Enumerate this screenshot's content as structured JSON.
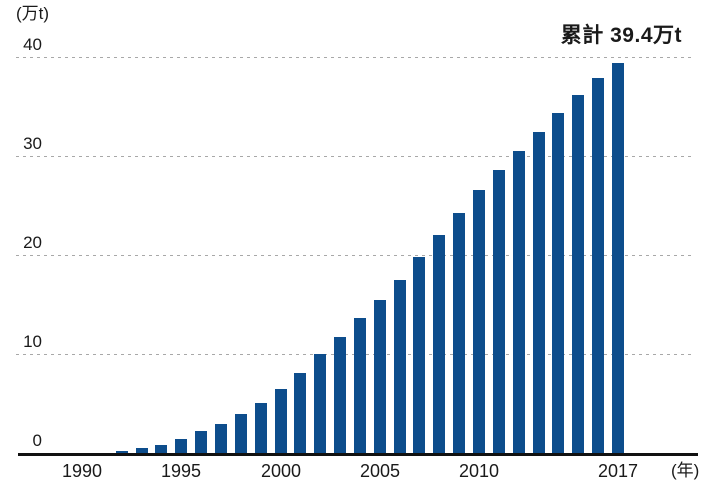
{
  "chart": {
    "y_unit_label": "(万t)",
    "x_unit_label": "(年)",
    "annotation": "累計 39.4万t"
  },
  "chart_data": {
    "type": "bar",
    "title": "",
    "annotation": "累計 39.4万t",
    "annotation_value": 39.4,
    "y_unit": "万t",
    "x_unit": "年",
    "ylim": [
      0,
      40
    ],
    "y_ticks": [
      0,
      10,
      20,
      30,
      40
    ],
    "y_tick_labels": [
      "0",
      "10",
      "20",
      "30",
      "40"
    ],
    "x_tick_years": [
      1990,
      1995,
      2000,
      2005,
      2010,
      2017
    ],
    "x_tick_labels": [
      "1990",
      "1995",
      "2000",
      "2005",
      "2010",
      "2017"
    ],
    "grid": "dotted-horizontal",
    "legend": "none",
    "bar_color": "#0d4d8c",
    "axis_color": "#111111",
    "grid_color": "#a8a8a8",
    "text_color": "#1a1a1a",
    "years": [
      1992,
      1993,
      1994,
      1995,
      1996,
      1997,
      1998,
      1999,
      2000,
      2001,
      2002,
      2003,
      2004,
      2005,
      2006,
      2007,
      2008,
      2009,
      2010,
      2011,
      2012,
      2013,
      2014,
      2015,
      2016,
      2017
    ],
    "values": [
      0.2,
      0.5,
      0.8,
      1.4,
      2.2,
      2.9,
      3.9,
      5.1,
      6.5,
      8.1,
      10.0,
      11.7,
      13.6,
      15.5,
      17.5,
      19.8,
      22.0,
      24.2,
      26.6,
      28.6,
      30.5,
      32.4,
      34.3,
      36.2,
      37.9,
      39.4
    ]
  }
}
